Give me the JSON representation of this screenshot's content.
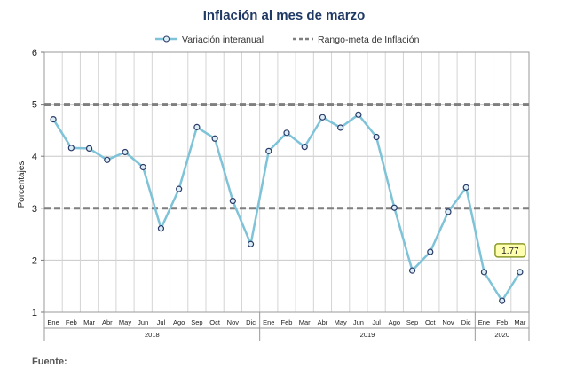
{
  "source_label": "Fuente:",
  "chart_data": {
    "type": "line",
    "title": "Inflación al mes de marzo",
    "ylabel": "Porcentajes",
    "ylim": [
      1,
      6
    ],
    "yticks": [
      1,
      2,
      3,
      4,
      5,
      6
    ],
    "grid": true,
    "legend_position": "top-center",
    "categories": [
      "Ene",
      "Feb",
      "Mar",
      "Abr",
      "May",
      "Jun",
      "Jul",
      "Ago",
      "Sep",
      "Oct",
      "Nov",
      "Dic",
      "Ene",
      "Feb",
      "Mar",
      "Abr",
      "May",
      "Jun",
      "Jul",
      "Ago",
      "Sep",
      "Oct",
      "Nov",
      "Dic",
      "Ene",
      "Feb",
      "Mar"
    ],
    "year_groups": [
      {
        "label": "2018",
        "count": 12
      },
      {
        "label": "2019",
        "count": 12
      },
      {
        "label": "2020",
        "count": 3
      }
    ],
    "series": [
      {
        "name": "Variación interanual",
        "color": "#7ec3d8",
        "marker_color": "#2b3a67",
        "values": [
          4.71,
          4.16,
          4.15,
          3.93,
          4.08,
          3.79,
          2.61,
          3.37,
          4.56,
          4.34,
          3.14,
          2.31,
          4.1,
          4.45,
          4.18,
          4.75,
          4.55,
          4.8,
          4.37,
          3.01,
          1.8,
          2.16,
          2.93,
          3.4,
          1.77,
          1.22,
          1.77
        ]
      },
      {
        "name": "Rango-meta de Inflación",
        "color": "#7f7f7f",
        "dashed": true,
        "levels": [
          3,
          5
        ]
      }
    ],
    "annotation": {
      "text": "1.77",
      "index": 26,
      "fill": "#ffffb0",
      "border": "#8c9a2a"
    }
  }
}
